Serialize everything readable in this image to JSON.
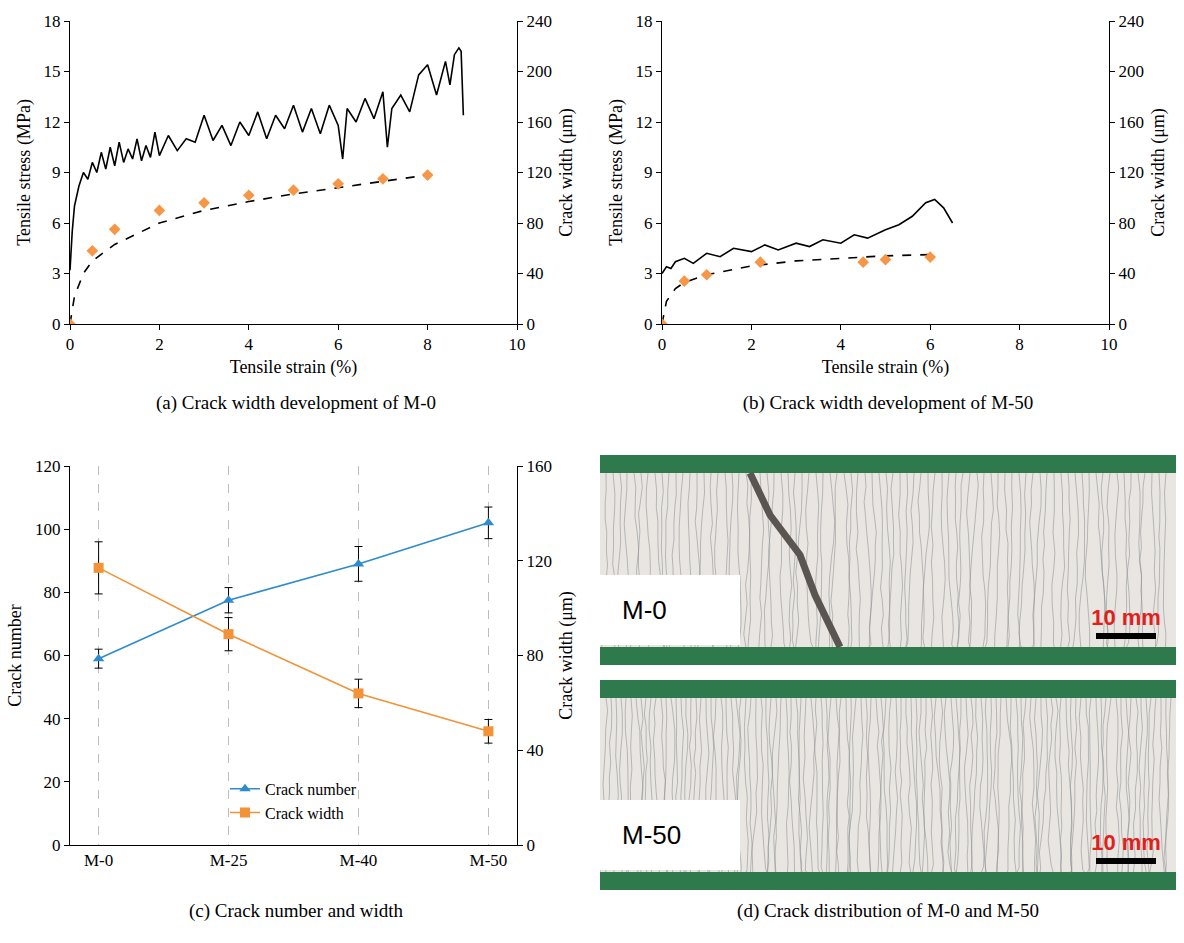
{
  "chart_data": [
    {
      "type": "line",
      "caption": "(a) Crack width development of M-0",
      "x_label": "Tensile strain (%)",
      "y_label": "Tensile stress (MPa)",
      "y2_label": "Crack width (μm)",
      "xlim": [
        0,
        10
      ],
      "xticks": [
        0,
        2,
        4,
        6,
        8,
        10
      ],
      "ylim": [
        0,
        18
      ],
      "yticks": [
        0,
        3,
        6,
        9,
        12,
        15,
        18
      ],
      "y2lim": [
        0,
        240
      ],
      "y2ticks": [
        0,
        40,
        80,
        120,
        160,
        200,
        240
      ],
      "grid": false,
      "series": [
        {
          "type": "line",
          "color": "#000000",
          "line_style": "solid",
          "x": [
            0,
            0.05,
            0.1,
            0.2,
            0.3,
            0.4,
            0.5,
            0.6,
            0.7,
            0.8,
            0.9,
            1.0,
            1.1,
            1.2,
            1.3,
            1.4,
            1.5,
            1.6,
            1.7,
            1.8,
            1.9,
            2.0,
            2.2,
            2.4,
            2.6,
            2.8,
            3.0,
            3.2,
            3.4,
            3.6,
            3.8,
            4.0,
            4.2,
            4.4,
            4.6,
            4.8,
            5.0,
            5.2,
            5.4,
            5.6,
            5.8,
            6.0,
            6.1,
            6.2,
            6.4,
            6.6,
            6.8,
            7.0,
            7.1,
            7.2,
            7.4,
            7.6,
            7.8,
            8.0,
            8.2,
            8.4,
            8.5,
            8.6,
            8.7,
            8.75,
            8.8
          ],
          "values": [
            3.2,
            5.5,
            7.0,
            8.2,
            9.0,
            8.6,
            9.6,
            9.0,
            10.2,
            9.2,
            10.5,
            9.4,
            10.8,
            9.6,
            10.4,
            9.8,
            11.0,
            9.7,
            10.6,
            9.9,
            11.4,
            10.0,
            11.2,
            10.3,
            11.0,
            10.8,
            12.4,
            10.9,
            11.8,
            10.6,
            12.0,
            11.2,
            12.6,
            11.0,
            12.4,
            11.6,
            13.0,
            11.4,
            12.8,
            11.3,
            13.0,
            11.8,
            9.8,
            12.8,
            12.0,
            13.4,
            12.2,
            13.8,
            10.5,
            12.8,
            13.6,
            12.6,
            14.8,
            15.4,
            13.6,
            15.6,
            14.2,
            16.0,
            16.4,
            16.2,
            12.4
          ]
        },
        {
          "type": "line",
          "color": "#000000",
          "line_style": "dashed",
          "axis": "y2",
          "x": [
            0,
            0.1,
            0.3,
            0.5,
            1,
            2,
            3,
            4,
            5,
            6,
            7,
            8
          ],
          "values": [
            0,
            22,
            40,
            50,
            63,
            80,
            90,
            97,
            103,
            108,
            113,
            118
          ]
        },
        {
          "type": "scatter",
          "color": "#f79646",
          "marker": "diamond",
          "axis": "y2",
          "x": [
            0,
            0.5,
            1,
            2,
            3,
            4,
            5,
            6,
            7,
            8
          ],
          "values": [
            0,
            58,
            75,
            90,
            96,
            102,
            106,
            111,
            115,
            118
          ]
        }
      ]
    },
    {
      "type": "line",
      "caption": "(b) Crack width development of M-50",
      "x_label": "Tensile strain (%)",
      "y_label": "Tensile stress (MPa)",
      "y2_label": "Crack width (μm)",
      "xlim": [
        0,
        10
      ],
      "xticks": [
        0,
        2,
        4,
        6,
        8,
        10
      ],
      "ylim": [
        0,
        18
      ],
      "yticks": [
        0,
        3,
        6,
        9,
        12,
        15,
        18
      ],
      "y2lim": [
        0,
        240
      ],
      "y2ticks": [
        0,
        40,
        80,
        120,
        160,
        200,
        240
      ],
      "grid": false,
      "series": [
        {
          "type": "line",
          "color": "#000000",
          "line_style": "solid",
          "x": [
            0,
            0.1,
            0.2,
            0.3,
            0.5,
            0.7,
            1.0,
            1.3,
            1.6,
            2.0,
            2.3,
            2.6,
            3.0,
            3.3,
            3.6,
            4.0,
            4.3,
            4.6,
            5.0,
            5.3,
            5.6,
            5.9,
            6.1,
            6.3,
            6.5
          ],
          "values": [
            3.0,
            3.4,
            3.3,
            3.7,
            3.9,
            3.6,
            4.2,
            4.0,
            4.5,
            4.3,
            4.7,
            4.4,
            4.8,
            4.6,
            5.0,
            4.8,
            5.3,
            5.1,
            5.6,
            5.9,
            6.4,
            7.2,
            7.4,
            6.9,
            6.0
          ]
        },
        {
          "type": "line",
          "color": "#000000",
          "line_style": "dashed",
          "axis": "y2",
          "x": [
            0,
            0.1,
            0.3,
            0.5,
            1,
            2,
            3,
            4,
            5,
            6
          ],
          "values": [
            0,
            18,
            28,
            33,
            39,
            46,
            50,
            52,
            54,
            55
          ]
        },
        {
          "type": "scatter",
          "color": "#f79646",
          "marker": "diamond",
          "axis": "y2",
          "x": [
            0,
            0.5,
            1,
            2.2,
            4.5,
            5,
            6
          ],
          "values": [
            0,
            34,
            39,
            49,
            49,
            51,
            53
          ]
        }
      ]
    },
    {
      "type": "line",
      "caption": "(c) Crack number and width",
      "y_label": "Crack number",
      "y2_label": "Crack width (μm)",
      "categories": [
        "M-0",
        "M-25",
        "M-40",
        "M-50"
      ],
      "ylim": [
        0,
        120
      ],
      "yticks": [
        0,
        20,
        40,
        60,
        80,
        100,
        120
      ],
      "y2lim": [
        0,
        160
      ],
      "y2ticks": [
        0,
        40,
        80,
        120,
        160
      ],
      "grid": true,
      "legend": "bottom",
      "series": [
        {
          "name": "Crack number",
          "color": "#2e8bcc",
          "marker": "triangle-up",
          "line_style": "solid",
          "values": [
            59,
            77.5,
            89,
            102
          ],
          "errors": [
            3,
            4,
            5.5,
            5
          ]
        },
        {
          "name": "Crack width",
          "color": "#f39237",
          "marker": "square",
          "line_style": "solid",
          "axis": "y2",
          "values": [
            117,
            89,
            64,
            48
          ],
          "errors": [
            11,
            7,
            6,
            5
          ]
        }
      ]
    }
  ],
  "photos": {
    "caption": "(d) Crack distribution of M-0 and M-50",
    "items": [
      {
        "label": "M-0",
        "scale_bar": "10 mm"
      },
      {
        "label": "M-50",
        "scale_bar": "10 mm"
      }
    ]
  }
}
